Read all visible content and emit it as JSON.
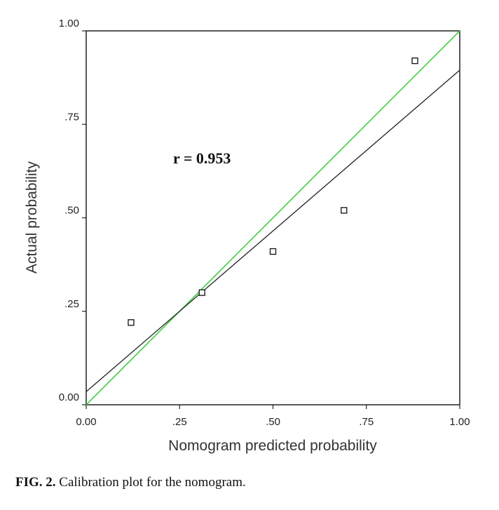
{
  "chart_data": {
    "type": "scatter",
    "xlabel": "Nomogram predicted probability",
    "ylabel": "Actual probability",
    "xlim": [
      0,
      1
    ],
    "ylim": [
      0,
      1
    ],
    "x_ticks": [
      0,
      0.25,
      0.5,
      0.75,
      1
    ],
    "x_tick_labels": [
      "0.00",
      ".25",
      ".50",
      ".75",
      "1.00"
    ],
    "y_ticks": [
      0,
      0.25,
      0.5,
      0.75,
      1
    ],
    "y_tick_labels": [
      "0.00",
      ".25",
      ".50",
      ".75",
      "1.00"
    ],
    "points": [
      {
        "x": 0.12,
        "y": 0.22
      },
      {
        "x": 0.31,
        "y": 0.3
      },
      {
        "x": 0.5,
        "y": 0.41
      },
      {
        "x": 0.69,
        "y": 0.52
      },
      {
        "x": 0.88,
        "y": 0.92
      }
    ],
    "reference_line": {
      "x": [
        0,
        1
      ],
      "y": [
        0,
        1
      ],
      "color": "#3ecf3e"
    },
    "fit_line": {
      "x": [
        0,
        1
      ],
      "y": [
        0.035,
        0.895
      ],
      "color": "#222222"
    },
    "annotation": "r = 0.953",
    "grid": false
  },
  "caption": {
    "label": "FIG. 2.",
    "text": "Calibration plot for the nomogram."
  }
}
